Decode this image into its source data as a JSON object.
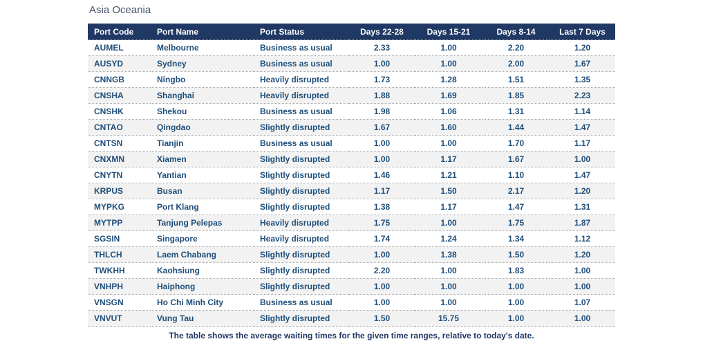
{
  "title": "Asia Oceania",
  "footer_note": "The table shows the average waiting times for the given time ranges, relative to today's date.",
  "colors": {
    "header_background": "#1F3864",
    "header_text": "#FFFFFF",
    "cell_text": "#1F4E79",
    "title_text": "#44546A",
    "alt_row_background": "#F2F2F2",
    "row_divider": "#A6A6A6",
    "footer_text": "#1F3864"
  },
  "chart_data": {
    "type": "table",
    "title": "Asia Oceania",
    "columns": [
      "Port Code",
      "Port Name",
      "Port Status",
      "Days 22-28",
      "Days 15-21",
      "Days 8-14",
      "Last 7 Days"
    ],
    "rows": [
      [
        "AUMEL",
        "Melbourne",
        "Business as usual",
        "2.33",
        "1.00",
        "2.20",
        "1.20"
      ],
      [
        "AUSYD",
        "Sydney",
        "Business as usual",
        "1.00",
        "1.00",
        "2.00",
        "1.67"
      ],
      [
        "CNNGB",
        "Ningbo",
        "Heavily disrupted",
        "1.73",
        "1.28",
        "1.51",
        "1.35"
      ],
      [
        "CNSHA",
        "Shanghai",
        "Heavily disrupted",
        "1.88",
        "1.69",
        "1.85",
        "2.23"
      ],
      [
        "CNSHK",
        "Shekou",
        "Business as usual",
        "1.98",
        "1.06",
        "1.31",
        "1.14"
      ],
      [
        "CNTAO",
        "Qingdao",
        "Slightly disrupted",
        "1.67",
        "1.60",
        "1.44",
        "1.47"
      ],
      [
        "CNTSN",
        "Tianjin",
        "Business as usual",
        "1.00",
        "1.00",
        "1.70",
        "1.17"
      ],
      [
        "CNXMN",
        "Xiamen",
        "Slightly disrupted",
        "1.00",
        "1.17",
        "1.67",
        "1.00"
      ],
      [
        "CNYTN",
        "Yantian",
        "Slightly disrupted",
        "1.46",
        "1.21",
        "1.10",
        "1.47"
      ],
      [
        "KRPUS",
        "Busan",
        "Slightly disrupted",
        "1.17",
        "1.50",
        "2.17",
        "1.20"
      ],
      [
        "MYPKG",
        "Port Klang",
        "Slightly disrupted",
        "1.38",
        "1.17",
        "1.47",
        "1.31"
      ],
      [
        "MYTPP",
        "Tanjung Pelepas",
        "Heavily disrupted",
        "1.75",
        "1.00",
        "1.75",
        "1.87"
      ],
      [
        "SGSIN",
        "Singapore",
        "Heavily disrupted",
        "1.74",
        "1.24",
        "1.34",
        "1.12"
      ],
      [
        "THLCH",
        "Laem Chabang",
        "Slightly disrupted",
        "1.00",
        "1.38",
        "1.50",
        "1.20"
      ],
      [
        "TWKHH",
        "Kaohsiung",
        "Slightly disrupted",
        "2.20",
        "1.00",
        "1.83",
        "1.00"
      ],
      [
        "VNHPH",
        "Haiphong",
        "Slightly disrupted",
        "1.00",
        "1.00",
        "1.00",
        "1.00"
      ],
      [
        "VNSGN",
        "Ho Chi Minh City",
        "Business as usual",
        "1.00",
        "1.00",
        "1.00",
        "1.07"
      ],
      [
        "VNVUT",
        "Vung Tau",
        "Slightly disrupted",
        "1.50",
        "15.75",
        "1.00",
        "1.00"
      ]
    ],
    "footnote": "The table shows the average waiting times for the given time ranges, relative to today's date.",
    "layout_hints": {
      "numeric_columns_alignment": "center",
      "text_columns_alignment": "left",
      "row_striping": true,
      "row_dividers": "dotted"
    }
  }
}
